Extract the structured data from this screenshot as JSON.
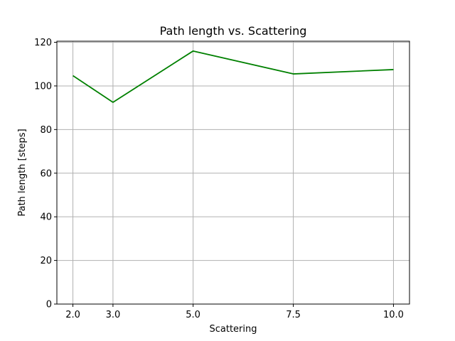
{
  "chart_data": {
    "type": "line",
    "title": "Path length vs. Scattering",
    "xlabel": "Scattering",
    "ylabel": "Path length [steps]",
    "x": [
      2.0,
      3.0,
      5.0,
      7.5,
      10.0
    ],
    "series": [
      {
        "values": [
          104.7,
          92.5,
          116.0,
          105.5,
          107.5
        ],
        "color": "#008000"
      }
    ],
    "xticks": [
      2.0,
      3.0,
      5.0,
      7.5,
      10.0
    ],
    "xtick_labels": [
      "2.0",
      "3.0",
      "5.0",
      "7.5",
      "10.0"
    ],
    "yticks": [
      0,
      20,
      40,
      60,
      80,
      100,
      120
    ],
    "ytick_labels": [
      "0",
      "20",
      "40",
      "60",
      "80",
      "100",
      "120"
    ],
    "xlim": [
      1.6,
      10.4
    ],
    "ylim": [
      0,
      120.5
    ],
    "grid": true,
    "grid_color": "#b0b0b0"
  }
}
